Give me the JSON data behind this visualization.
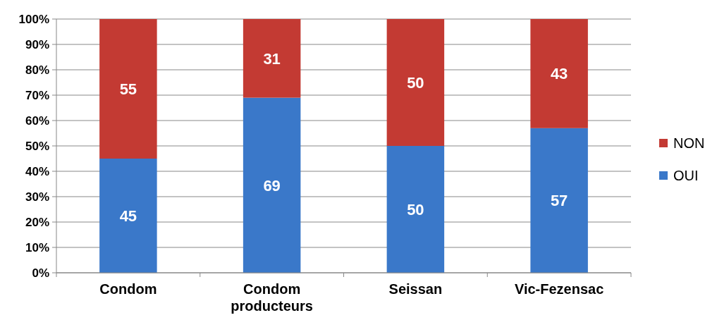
{
  "chart_data": {
    "type": "bar",
    "stacked": true,
    "categories": [
      "Condom",
      "Condom producteurs",
      "Seissan",
      "Vic-Fezensac"
    ],
    "series": [
      {
        "name": "OUI",
        "color": "#3a78c9",
        "values": [
          45,
          69,
          50,
          57
        ]
      },
      {
        "name": "NON",
        "color": "#c33a33",
        "values": [
          55,
          31,
          50,
          43
        ]
      }
    ],
    "ylim": [
      0,
      100
    ],
    "yticks": [
      {
        "value": 0,
        "label": "0%"
      },
      {
        "value": 10,
        "label": "10%"
      },
      {
        "value": 20,
        "label": "20%"
      },
      {
        "value": 30,
        "label": "30%"
      },
      {
        "value": 40,
        "label": "40%"
      },
      {
        "value": 50,
        "label": "50%"
      },
      {
        "value": 60,
        "label": "60%"
      },
      {
        "value": 70,
        "label": "70%"
      },
      {
        "value": 80,
        "label": "80%"
      },
      {
        "value": 90,
        "label": "90%"
      },
      {
        "value": 100,
        "label": "100%"
      }
    ],
    "grid": "y",
    "data_labels": true,
    "legend": "right"
  }
}
